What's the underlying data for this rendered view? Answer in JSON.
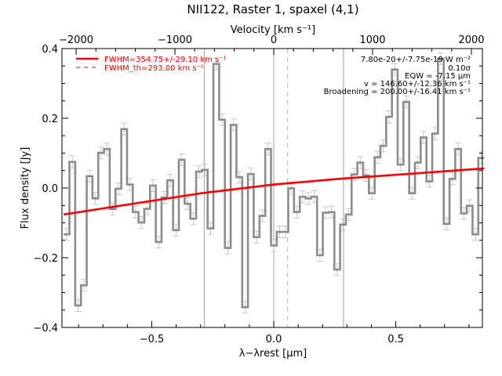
{
  "chart_data": {
    "type": "line",
    "style": "histogram-step with error bars",
    "title": "NII122, Raster 1, spaxel (4,1)",
    "xlabel": "λ−λrest [μm]",
    "ylabel": "Flux density [Jy]",
    "top_xlabel": "Velocity [km s⁻¹]",
    "xlim": [
      -0.868,
      0.855
    ],
    "ylim": [
      -0.4,
      0.4
    ],
    "top_xlim": [
      -2143,
      2111
    ],
    "x_ticks": [
      -0.5,
      0.0,
      0.5
    ],
    "x_tick_labels": [
      "−0.5",
      "0.0",
      "0.5"
    ],
    "y_ticks": [
      0.4,
      0.2,
      0.0,
      -0.2,
      -0.4
    ],
    "y_tick_labels": [
      "0.4",
      "0.2",
      "0.0",
      "−0.2",
      "−0.4"
    ],
    "top_ticks": [
      -2000,
      -1000,
      0,
      1000,
      2000
    ],
    "top_tick_labels": [
      "−2000",
      "−1000",
      "0",
      "1000",
      "2000"
    ],
    "grid": false,
    "bin_start": -0.861,
    "bin_width": 0.0236,
    "error": 0.017,
    "values": [
      -0.133,
      0.075,
      -0.337,
      -0.279,
      0.034,
      -0.03,
      0.101,
      0.112,
      -0.06,
      -0.002,
      0.169,
      0.01,
      -0.069,
      -0.099,
      -0.06,
      0.007,
      -0.155,
      -0.027,
      0.022,
      -0.121,
      0.081,
      -0.045,
      -0.088,
      0.047,
      0.052,
      -0.116,
      0.356,
      0.196,
      -0.172,
      0.181,
      0.031,
      -0.342,
      0.04,
      -0.141,
      -0.08,
      0.112,
      -0.165,
      -0.126,
      -0.126,
      -0.001,
      -0.069,
      -0.025,
      -0.03,
      -0.025,
      -0.193,
      -0.071,
      -0.069,
      -0.234,
      -0.105,
      -0.076,
      0.039,
      0.073,
      0.036,
      -0.015,
      0.088,
      0.121,
      0.204,
      0.34,
      0.067,
      0.247,
      -0.015,
      0.073,
      0.145,
      0.019,
      0.156,
      0.371,
      -0.103,
      0.026,
      0.112,
      -0.073,
      -0.051,
      -0.133,
      0.086
    ],
    "fit": {
      "x": [
        -0.861,
        -0.298,
        0.0,
        0.263,
        0.861
      ],
      "y": [
        -0.076,
        -0.015,
        0.01,
        0.026,
        0.056
      ],
      "color": "#ff0000"
    },
    "vlines_solid": [
      -0.285,
      0.0,
      0.286
    ],
    "vline_dashed": 0.057,
    "step_color": "#8c8c8c",
    "error_color": "#c8c8c8",
    "legend": [
      {
        "label": "FWHM=354.75+/-29.10 km s⁻¹",
        "style": "solid"
      },
      {
        "label": "FWHM_th=293.00 km s⁻¹",
        "style": "dashed"
      }
    ],
    "legend_position": "top-left",
    "annotations": [
      "7.80e-20+/-7.75e-19 W m⁻²",
      "0.10σ",
      "EQW = -7.15 μm",
      "v = 146.60+/-12.36 km s⁻¹",
      "Broadening = 200.00+/-16.41 km s⁻¹"
    ]
  }
}
